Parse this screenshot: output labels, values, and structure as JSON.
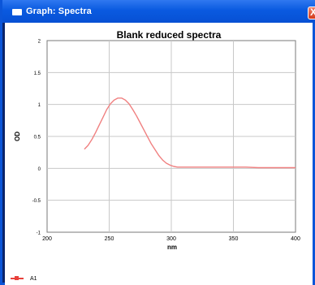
{
  "window": {
    "title": "Graph: Spectra",
    "close_glyph": "X",
    "icon": "window-icon"
  },
  "colors": {
    "titlebar": "#0a5ae0",
    "series": "#f08080",
    "grid": "#c8c8c8"
  },
  "chart_data": {
    "type": "line",
    "title": "Blank reduced spectra",
    "xlabel": "nm",
    "ylabel": "OD",
    "xlim": [
      200,
      400
    ],
    "ylim": [
      -1,
      2
    ],
    "xticks": [
      200,
      250,
      300,
      350,
      400
    ],
    "yticks": [
      -1,
      -0.5,
      0,
      0.5,
      1,
      1.5,
      2
    ],
    "grid": true,
    "legend_position": "bottom-left",
    "series": [
      {
        "name": "A1",
        "color": "#f08080",
        "x": [
          230,
          233,
          236,
          239,
          242,
          245,
          248,
          251,
          254,
          257,
          260,
          263,
          266,
          269,
          272,
          275,
          278,
          281,
          284,
          287,
          290,
          293,
          296,
          299,
          302,
          305,
          310,
          320,
          330,
          340,
          350,
          360,
          370,
          380,
          390,
          400
        ],
        "y": [
          0.3,
          0.36,
          0.45,
          0.56,
          0.68,
          0.8,
          0.92,
          1.01,
          1.07,
          1.1,
          1.1,
          1.07,
          1.01,
          0.92,
          0.82,
          0.71,
          0.6,
          0.49,
          0.38,
          0.29,
          0.2,
          0.13,
          0.08,
          0.05,
          0.03,
          0.02,
          0.02,
          0.02,
          0.02,
          0.02,
          0.02,
          0.02,
          0.01,
          0.01,
          0.01,
          0.01
        ]
      }
    ]
  }
}
